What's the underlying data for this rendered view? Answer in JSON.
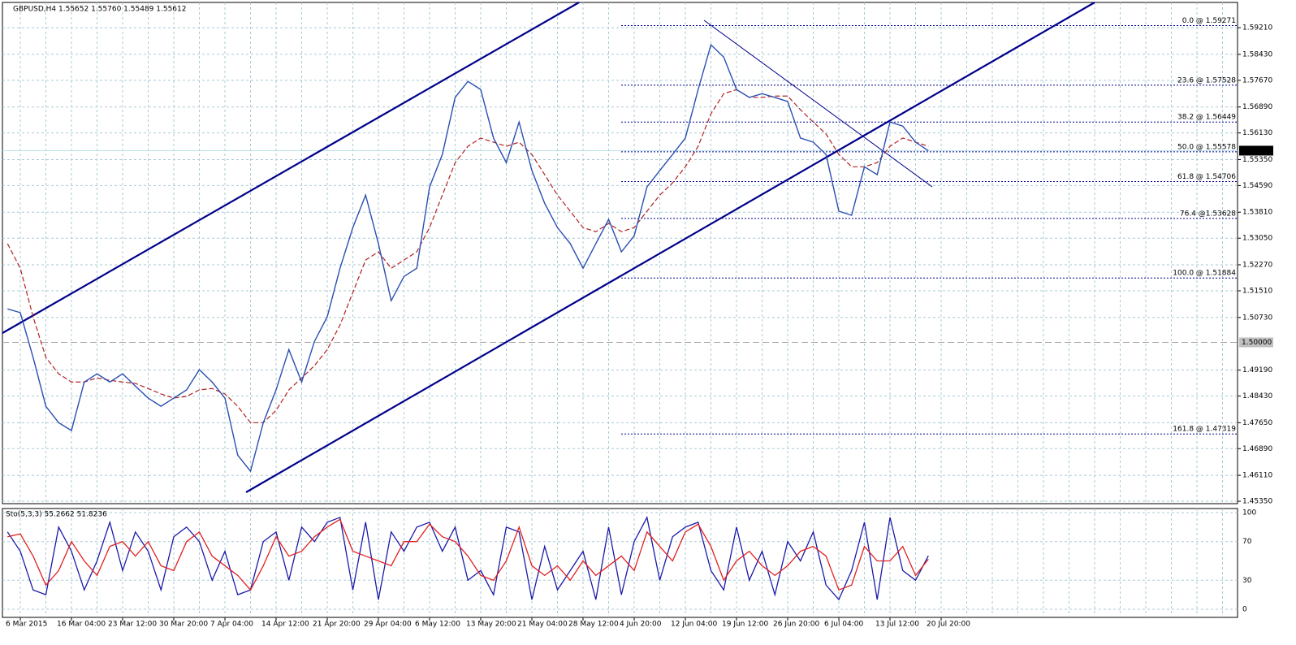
{
  "chart_data": {
    "type": "line",
    "title": "GBPUSD,H4 1.55652 1.55760 1.55489 1.55612",
    "categories": [
      null,
      "6 Mar 2015",
      null,
      null,
      null,
      "16 Mar 04:00",
      null,
      null,
      null,
      "23 Mar 12:00",
      null,
      null,
      null,
      "30 Mar 20:00",
      null,
      null,
      null,
      "7 Apr 04:00",
      null,
      null,
      null,
      "14 Apr 12:00",
      null,
      null,
      null,
      "21 Apr 20:00",
      null,
      null,
      null,
      "29 Apr 04:00",
      null,
      null,
      null,
      "6 May 12:00",
      null,
      null,
      null,
      "13 May 20:00",
      null,
      null,
      null,
      "21 May 04:00",
      null,
      null,
      null,
      "28 May 12:00",
      null,
      null,
      null,
      "4 Jun 20:00",
      null,
      null,
      null,
      "12 Jun 04:00",
      null,
      null,
      null,
      "19 Jun 12:00",
      null,
      null,
      null,
      "26 Jun 20:00",
      null,
      null,
      null,
      "6 Jul 04:00",
      null,
      null,
      null,
      "13 Jul 12:00",
      null,
      null,
      null,
      "20 Jul 20:00"
    ],
    "series": [
      {
        "name": "GBPUSD",
        "color": "#2a4fb0",
        "values": [
          1.5098,
          1.5087,
          1.4956,
          1.4813,
          1.4765,
          1.4742,
          1.4884,
          1.4908,
          1.4884,
          1.4908,
          1.4872,
          1.4837,
          1.4813,
          1.4837,
          1.4861,
          1.492,
          1.4884,
          1.4837,
          1.467,
          1.4623,
          1.4765,
          1.4861,
          1.4979,
          1.4884,
          1.5003,
          1.5075,
          1.5217,
          1.5336,
          1.5431,
          1.5289,
          1.5122,
          1.5193,
          1.5217,
          1.5455,
          1.555,
          1.5717,
          1.5764,
          1.574,
          1.5598,
          1.5526,
          1.5645,
          1.5503,
          1.5407,
          1.5336,
          1.5289,
          1.5217,
          1.5289,
          1.536,
          1.5265,
          1.5312,
          1.5455,
          1.5503,
          1.555,
          1.5598,
          1.574,
          1.5871,
          1.5835,
          1.574,
          1.5717,
          1.5728,
          1.5717,
          1.5705,
          1.5598,
          1.5586,
          1.555,
          1.5384,
          1.5372,
          1.5514,
          1.5491,
          1.5645,
          1.5633,
          1.5586,
          1.5561,
          null
        ]
      },
      {
        "color": "#b22222",
        "values": [
          1.5289,
          1.5217,
          1.5075,
          1.4956,
          1.4908,
          1.4884,
          1.4884,
          1.4896,
          1.4889,
          1.4884,
          1.488,
          1.4865,
          1.4849,
          1.4837,
          1.4842,
          1.4861,
          1.4865,
          1.4849,
          1.4813,
          1.4765,
          1.4765,
          1.4801,
          1.4861,
          1.4896,
          1.4932,
          1.4979,
          1.5051,
          1.5146,
          1.5241,
          1.5265,
          1.5217,
          1.5241,
          1.5265,
          1.5336,
          1.5431,
          1.5526,
          1.5574,
          1.5598,
          1.5586,
          1.5574,
          1.5586,
          1.555,
          1.5491,
          1.5431,
          1.5384,
          1.5336,
          1.5324,
          1.5348,
          1.5324,
          1.5336,
          1.5384,
          1.5431,
          1.5467,
          1.5514,
          1.5574,
          1.5669,
          1.5728,
          1.574,
          1.5717,
          1.5717,
          1.5721,
          1.5721,
          1.5681,
          1.5645,
          1.561,
          1.555,
          1.5514,
          1.5514,
          1.5526,
          1.5574,
          1.5598,
          1.5586,
          1.5574,
          null
        ]
      }
    ],
    "ylim": [
      1.4528,
      1.5995
    ],
    "yticks": [
      {
        "value": 1.5921,
        "label": "1.59210"
      },
      {
        "value": 1.5843,
        "label": "1.58430"
      },
      {
        "value": 1.5767,
        "label": "1.57670"
      },
      {
        "value": 1.5689,
        "label": "1.56890"
      },
      {
        "value": 1.5613,
        "label": "1.56130"
      },
      {
        "value": 1.5535,
        "label": "1.55350"
      },
      {
        "value": 1.5459,
        "label": "1.54590"
      },
      {
        "value": 1.5381,
        "label": "1.53810"
      },
      {
        "value": 1.5305,
        "label": "1.53050"
      },
      {
        "value": 1.5227,
        "label": "1.52270"
      },
      {
        "value": 1.5151,
        "label": "1.51510"
      },
      {
        "value": 1.5073,
        "label": "1.50730"
      },
      {
        "value": 1.4919,
        "label": "1.49190"
      },
      {
        "value": 1.4843,
        "label": "1.48430"
      },
      {
        "value": 1.4765,
        "label": "1.47650"
      },
      {
        "value": 1.4689,
        "label": "1.46890"
      },
      {
        "value": 1.4611,
        "label": "1.46110"
      },
      {
        "value": 1.4535,
        "label": "1.45350"
      }
    ],
    "grid": true,
    "current_price": {
      "value": 1.55612,
      "label": "1.55612"
    },
    "level": {
      "value": 1.5,
      "label": "1.50000"
    },
    "fibonacci": [
      {
        "value": 1.59271,
        "label": "0.0 @ 1.59271"
      },
      {
        "value": 1.57528,
        "label": "23.6 @ 1.57528"
      },
      {
        "value": 1.56449,
        "label": "38.2 @ 1.56449"
      },
      {
        "value": 1.55578,
        "label": "50.0 @ 1.55578"
      },
      {
        "value": 1.54706,
        "label": "61.8 @ 1.54706"
      },
      {
        "value": 1.53628,
        "label": "76.4 @1.53628"
      },
      {
        "value": 1.51884,
        "label": "100.0 @ 1.51884"
      },
      {
        "value": 1.47319,
        "label": "161.8 @ 1.47319"
      }
    ],
    "stochastic": {
      "title": "Sto(5,3,3) 55.2662 51.8236",
      "ylim": [
        -8.4,
        104.2
      ],
      "yticks": [
        100,
        70,
        30,
        0
      ],
      "series": [
        {
          "color": "#1a1aa8",
          "values": [
            80,
            60,
            20,
            15,
            85,
            60,
            20,
            50,
            90,
            40,
            80,
            60,
            20,
            75,
            85,
            70,
            30,
            60,
            15,
            20,
            70,
            80,
            30,
            85,
            70,
            90,
            95,
            20,
            90,
            10,
            80,
            60,
            85,
            90,
            60,
            85,
            30,
            40,
            15,
            85,
            80,
            10,
            65,
            20,
            40,
            60,
            10,
            85,
            15,
            70,
            95,
            30,
            75,
            85,
            90,
            40,
            20,
            85,
            30,
            60,
            15,
            70,
            50,
            80,
            25,
            10,
            40,
            90,
            10,
            95,
            40,
            30,
            55.2662,
            null
          ]
        },
        {
          "color": "#e02020",
          "values": [
            75,
            78,
            55,
            25,
            40,
            70,
            50,
            35,
            65,
            70,
            55,
            70,
            45,
            40,
            70,
            80,
            55,
            45,
            35,
            20,
            45,
            75,
            55,
            60,
            75,
            85,
            93,
            60,
            55,
            50,
            45,
            70,
            70,
            88,
            75,
            70,
            55,
            35,
            30,
            50,
            85,
            45,
            35,
            45,
            30,
            50,
            35,
            45,
            55,
            40,
            80,
            65,
            50,
            80,
            88,
            65,
            30,
            50,
            60,
            45,
            35,
            45,
            60,
            65,
            55,
            20,
            25,
            65,
            50,
            50,
            65,
            35,
            51.8236,
            null
          ]
        }
      ]
    }
  }
}
